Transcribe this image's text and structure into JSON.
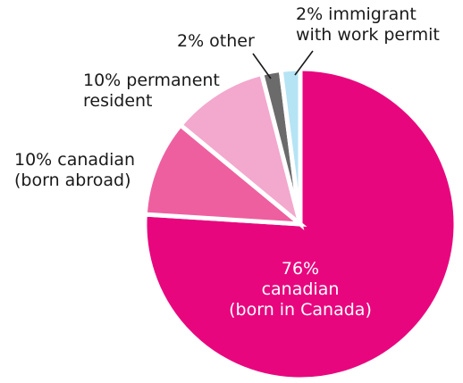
{
  "chart_data": {
    "type": "pie",
    "slices": [
      {
        "value": 76,
        "label_lines": [
          "76%",
          "canadian",
          "(born in Canada)"
        ],
        "color": "#e8067e"
      },
      {
        "value": 10,
        "label_lines": [
          "10% canadian",
          "(born abroad)"
        ],
        "color": "#ee5fa0"
      },
      {
        "value": 10,
        "label_lines": [
          "10% permanent",
          "resident"
        ],
        "color": "#f3a8cd"
      },
      {
        "value": 2,
        "label_lines": [
          "2% other"
        ],
        "color": "#6b6b6b"
      },
      {
        "value": 2,
        "label_lines": [
          "2% immigrant",
          "with work permit"
        ],
        "color": "#b5e4f4"
      }
    ],
    "start": "12 o'clock",
    "direction": "clockwise"
  }
}
